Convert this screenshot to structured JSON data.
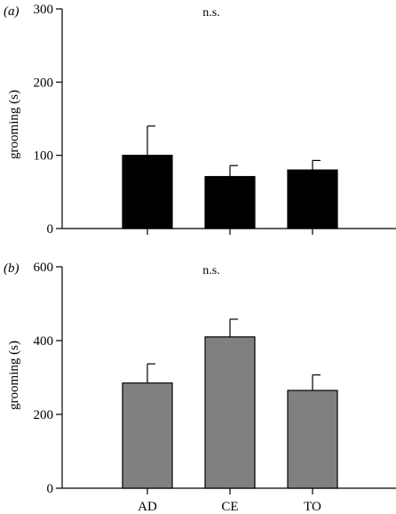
{
  "chart_data": [
    {
      "type": "bar",
      "panel_label": "(a)",
      "annotation": "n.s.",
      "categories": [
        "AD",
        "CE",
        "TO"
      ],
      "values": [
        100,
        71,
        80
      ],
      "errors": [
        40,
        15,
        13
      ],
      "ylabel": "grooming (s)",
      "ylim": [
        0,
        300
      ],
      "yticks": [
        "0",
        "100",
        "200",
        "300"
      ],
      "bar_color": "#000000",
      "show_category_labels": false,
      "grid": false
    },
    {
      "type": "bar",
      "panel_label": "(b)",
      "annotation": "n.s.",
      "categories": [
        "AD",
        "CE",
        "TO"
      ],
      "values": [
        285,
        410,
        265
      ],
      "errors": [
        52,
        48,
        42
      ],
      "ylabel": "grooming (s)",
      "ylim": [
        0,
        600
      ],
      "yticks": [
        "0",
        "200",
        "400",
        "600"
      ],
      "bar_color": "#808080",
      "show_category_labels": true,
      "grid": false
    }
  ]
}
